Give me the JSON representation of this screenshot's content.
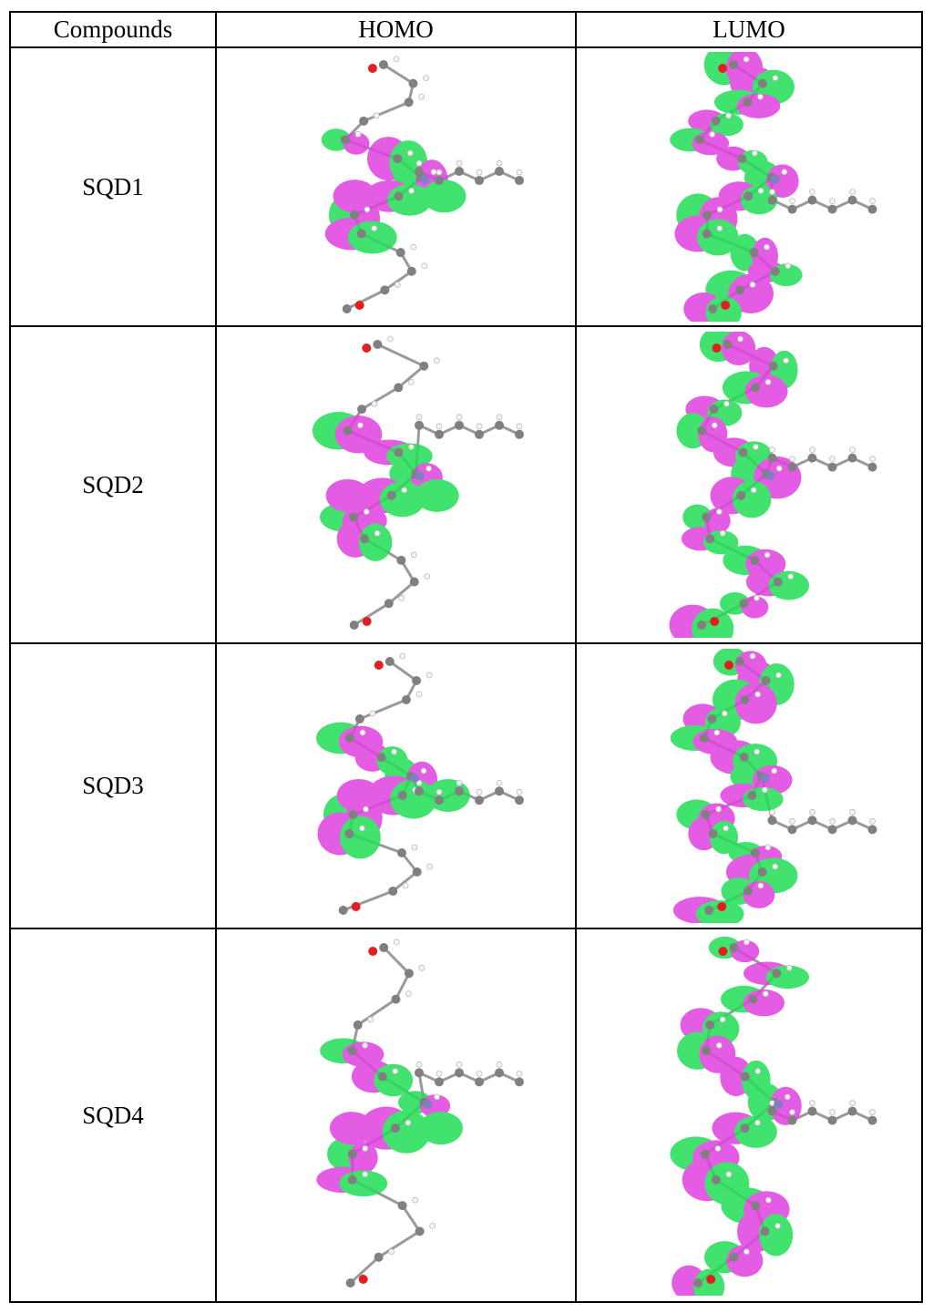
{
  "headers": [
    "Compounds",
    "HOMO",
    "LUMO"
  ],
  "rows": [
    {
      "compound": "SQD1"
    },
    {
      "compound": "SQD2"
    },
    {
      "compound": "SQD3"
    },
    {
      "compound": "SQD4"
    }
  ],
  "colors": {
    "lobe_positive": "#e040e0",
    "lobe_negative": "#22dd55",
    "carbon": "#808080",
    "oxygen": "#e02020",
    "nitrogen": "#8080c0",
    "hydrogen": "#f4f4f4"
  },
  "icons": {
    "orbital_image": "molecular-orbital-render"
  }
}
